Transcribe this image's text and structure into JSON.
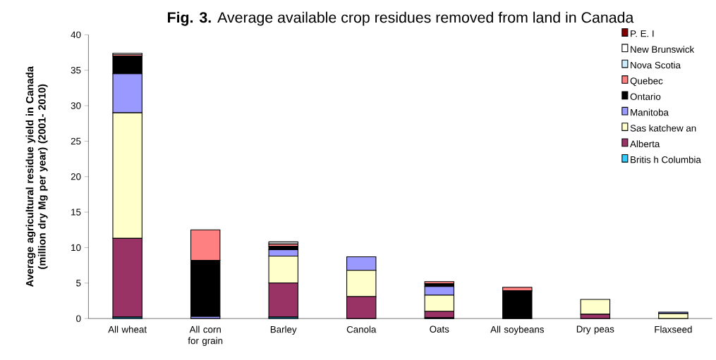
{
  "chart_data": {
    "type": "bar",
    "stacked": true,
    "title": "**Fig. 3.** Average available crop residues removed from land in Canada",
    "ylabel": "Average agricultural residue yield in Canada (million dry Mg per year) (2001- 2010)",
    "categories": [
      "All wheat",
      "All corn for grain",
      "Barley",
      "Canola",
      "Oats",
      "All soybeans",
      "Dry peas",
      "Flaxseed"
    ],
    "ylim": [
      0,
      40
    ],
    "yticks": [
      0,
      5,
      10,
      15,
      20,
      25,
      30,
      35,
      40
    ],
    "legend": "top right",
    "series": [
      {
        "name": "Britis h Columbia",
        "color": "#33ccff",
        "values": [
          0.2,
          0,
          0.2,
          0,
          0.1,
          0,
          0,
          0
        ]
      },
      {
        "name": "Alberta",
        "color": "#993366",
        "values": [
          11.1,
          0,
          4.8,
          3.1,
          0.9,
          0,
          0.6,
          0
        ]
      },
      {
        "name": "Sas katchew an",
        "color": "#ffffcc",
        "values": [
          17.7,
          0,
          3.8,
          3.7,
          2.3,
          0,
          2.1,
          0.7
        ]
      },
      {
        "name": "Manitoba",
        "color": "#9999ff",
        "values": [
          5.5,
          0.3,
          0.9,
          1.9,
          1.2,
          0,
          0,
          0.2
        ]
      },
      {
        "name": "Ontario",
        "color": "#000000",
        "values": [
          2.5,
          7.9,
          0.5,
          0,
          0.4,
          3.9,
          0,
          0
        ]
      },
      {
        "name": "Quebec",
        "color": "#ff8080",
        "values": [
          0.2,
          4.3,
          0.3,
          0,
          0.3,
          0.5,
          0,
          0
        ]
      },
      {
        "name": "Nova Scotia",
        "color": "#ccecff",
        "values": [
          0,
          0,
          0,
          0,
          0,
          0,
          0,
          0
        ]
      },
      {
        "name": "New  Brunswick",
        "color": "#ffffff",
        "values": [
          0.2,
          0,
          0.3,
          0,
          0,
          0,
          0,
          0
        ]
      },
      {
        "name": "P. E. I",
        "color": "#800000",
        "values": [
          0,
          0,
          0,
          0,
          0,
          0,
          0,
          0
        ]
      }
    ]
  }
}
